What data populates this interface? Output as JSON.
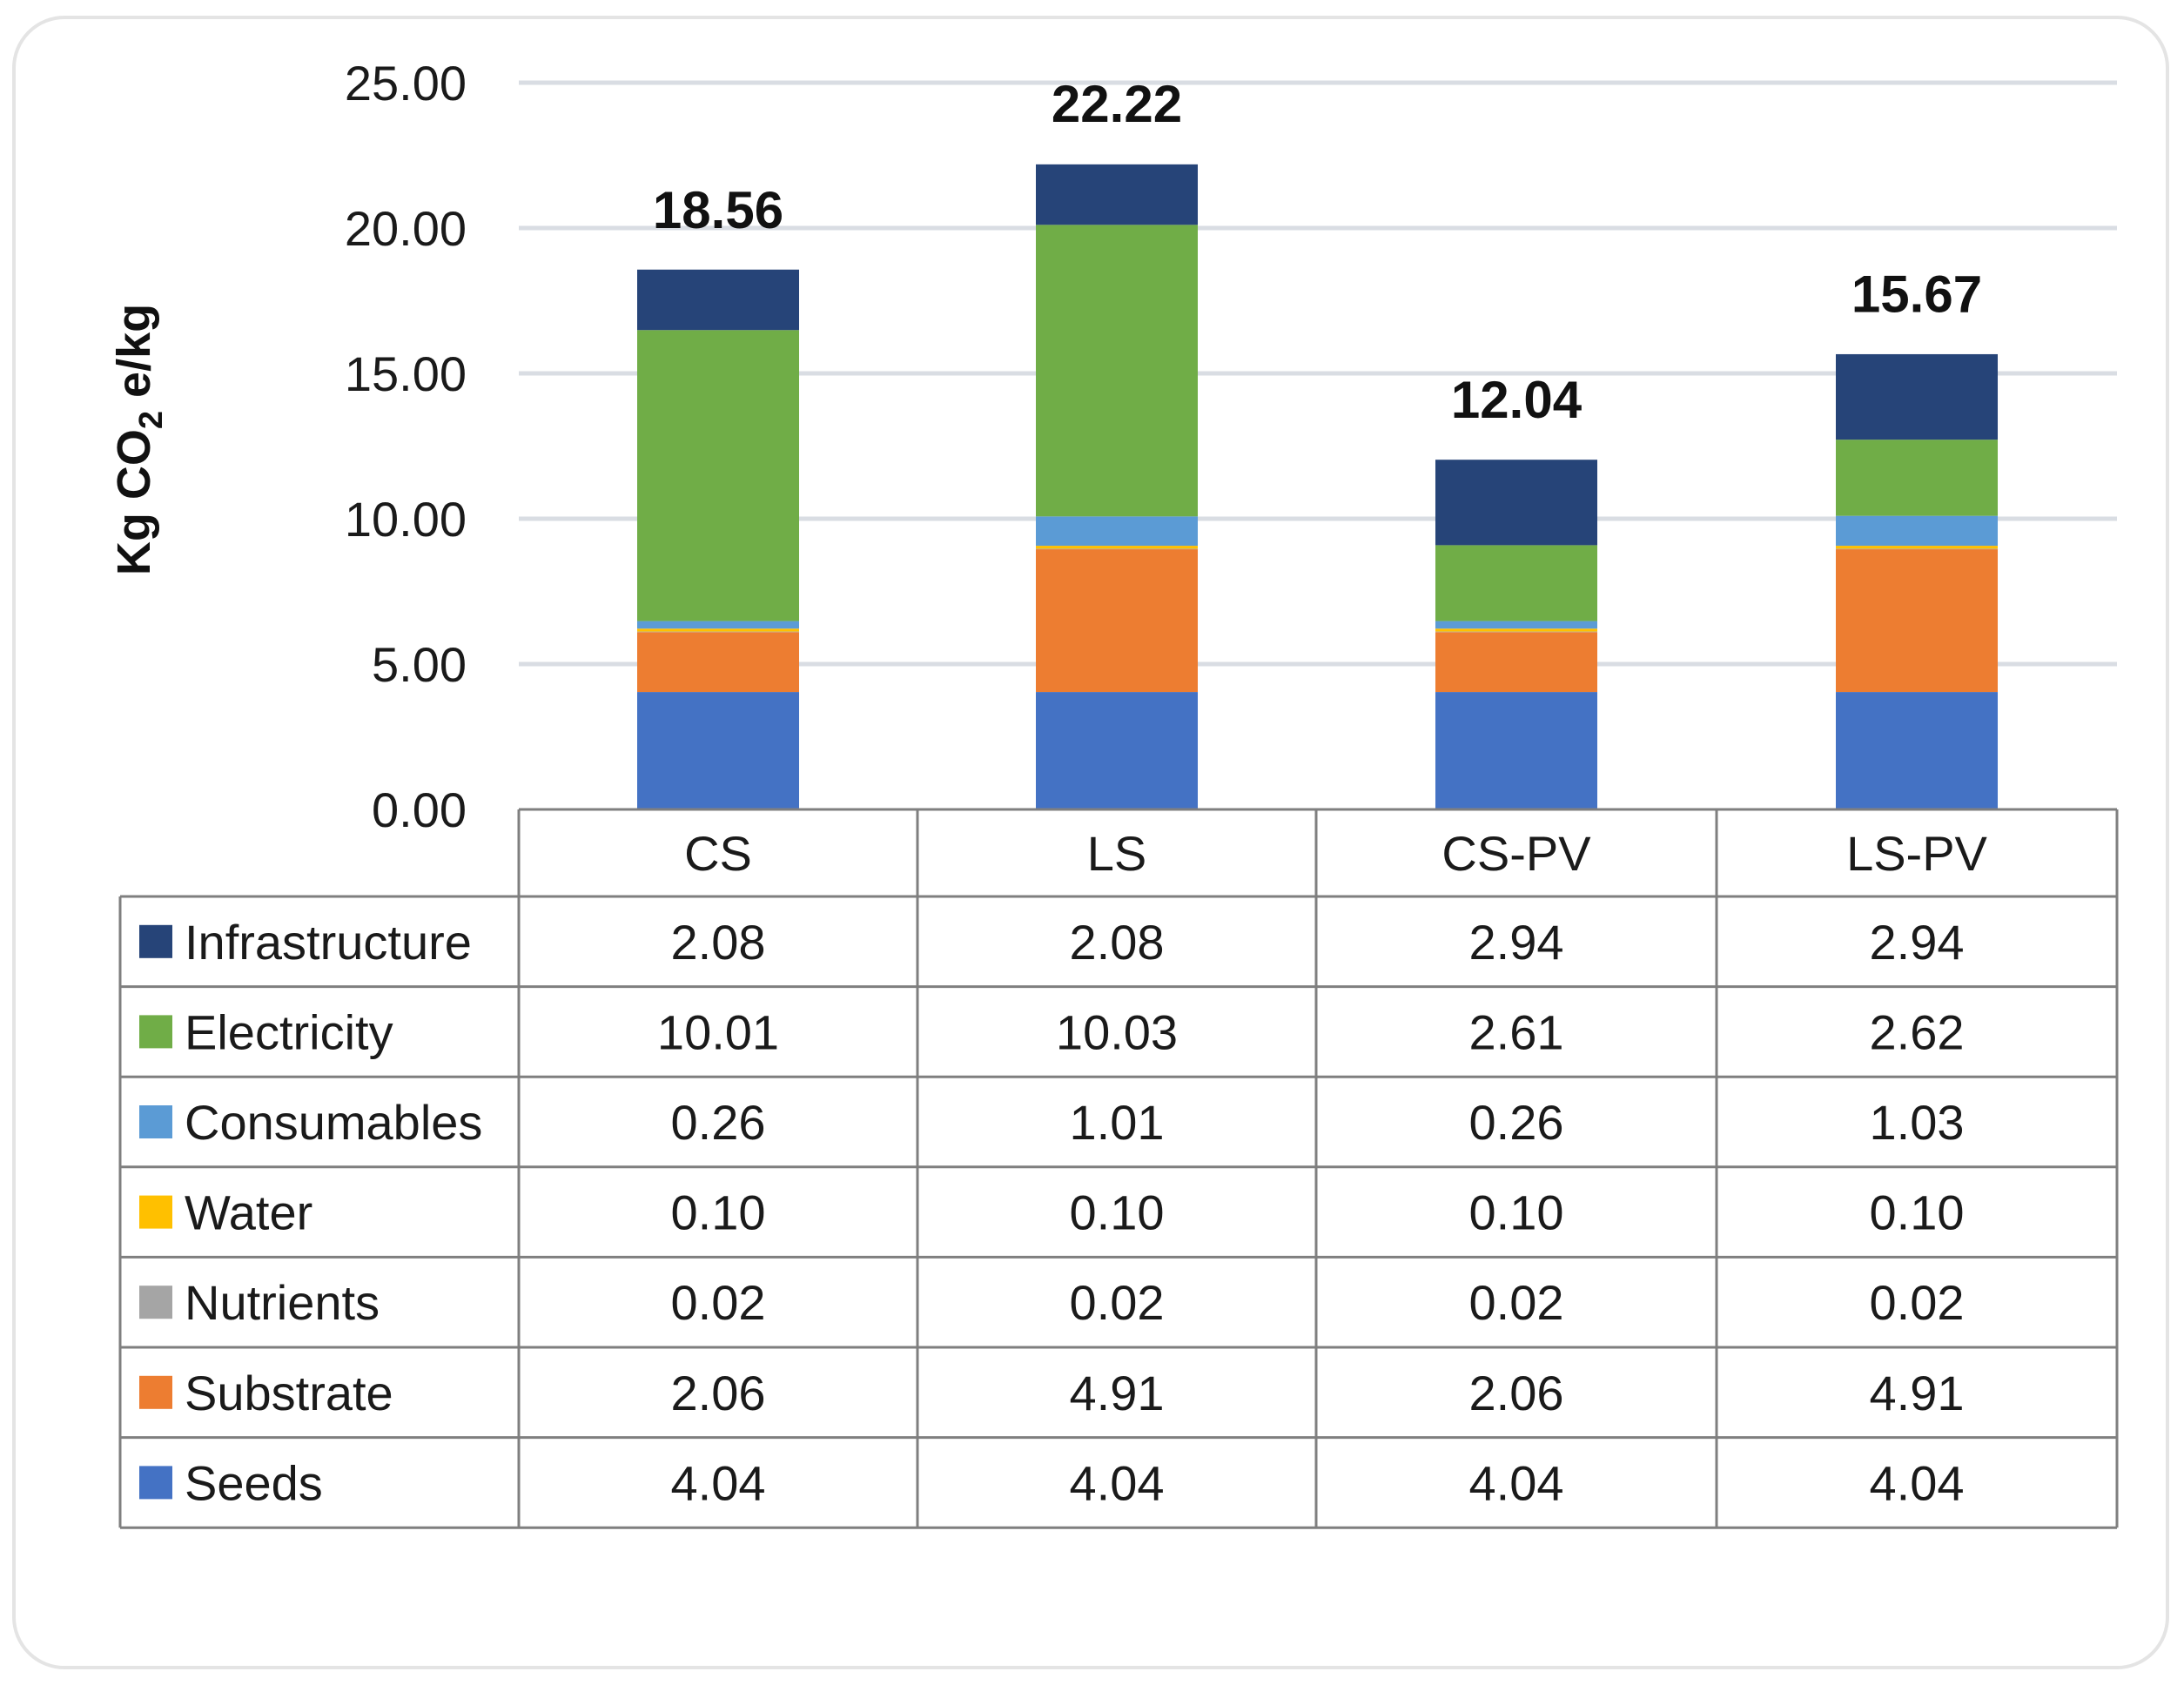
{
  "chart_data": {
    "type": "bar",
    "stacked": true,
    "ylabel_main": "Kg CO",
    "ylabel_sub": "2",
    "ylabel_tail": " e/kg",
    "ylim": [
      0,
      25
    ],
    "yticks": [
      "0.00",
      "5.00",
      "10.00",
      "15.00",
      "20.00",
      "25.00"
    ],
    "ytick_values": [
      0,
      5,
      10,
      15,
      20,
      25
    ],
    "grid": true,
    "categories": [
      "CS",
      "LS",
      "CS-PV",
      "LS-PV"
    ],
    "totals": [
      18.56,
      22.22,
      12.04,
      15.67
    ],
    "total_labels": [
      "18.56",
      "22.22",
      "12.04",
      "15.67"
    ],
    "series": [
      {
        "name": "Seeds",
        "color": "#4472C4",
        "values": [
          4.04,
          4.04,
          4.04,
          4.04
        ],
        "labels": [
          "4.04",
          "4.04",
          "4.04",
          "4.04"
        ]
      },
      {
        "name": "Substrate",
        "color": "#ED7D31",
        "values": [
          2.06,
          4.91,
          2.06,
          4.91
        ],
        "labels": [
          "2.06",
          "4.91",
          "2.06",
          "4.91"
        ]
      },
      {
        "name": "Nutrients",
        "color": "#A5A5A5",
        "values": [
          0.02,
          0.02,
          0.02,
          0.02
        ],
        "labels": [
          "0.02",
          "0.02",
          "0.02",
          "0.02"
        ]
      },
      {
        "name": "Water",
        "color": "#FFC000",
        "values": [
          0.1,
          0.1,
          0.1,
          0.1
        ],
        "labels": [
          "0.10",
          "0.10",
          "0.10",
          "0.10"
        ]
      },
      {
        "name": "Consumables",
        "color": "#5B9BD5",
        "values": [
          0.26,
          1.01,
          0.26,
          1.03
        ],
        "labels": [
          "0.26",
          "1.01",
          "0.26",
          "1.03"
        ]
      },
      {
        "name": "Electricity",
        "color": "#70AD47",
        "values": [
          10.01,
          10.03,
          2.61,
          2.62
        ],
        "labels": [
          "10.01",
          "10.03",
          "2.61",
          "2.62"
        ]
      },
      {
        "name": "Infrastructure",
        "color": "#264478",
        "values": [
          2.08,
          2.08,
          2.94,
          2.94
        ],
        "labels": [
          "2.08",
          "2.08",
          "2.94",
          "2.94"
        ]
      }
    ],
    "table_order": [
      "Infrastructure",
      "Electricity",
      "Consumables",
      "Water",
      "Nutrients",
      "Substrate",
      "Seeds"
    ]
  }
}
